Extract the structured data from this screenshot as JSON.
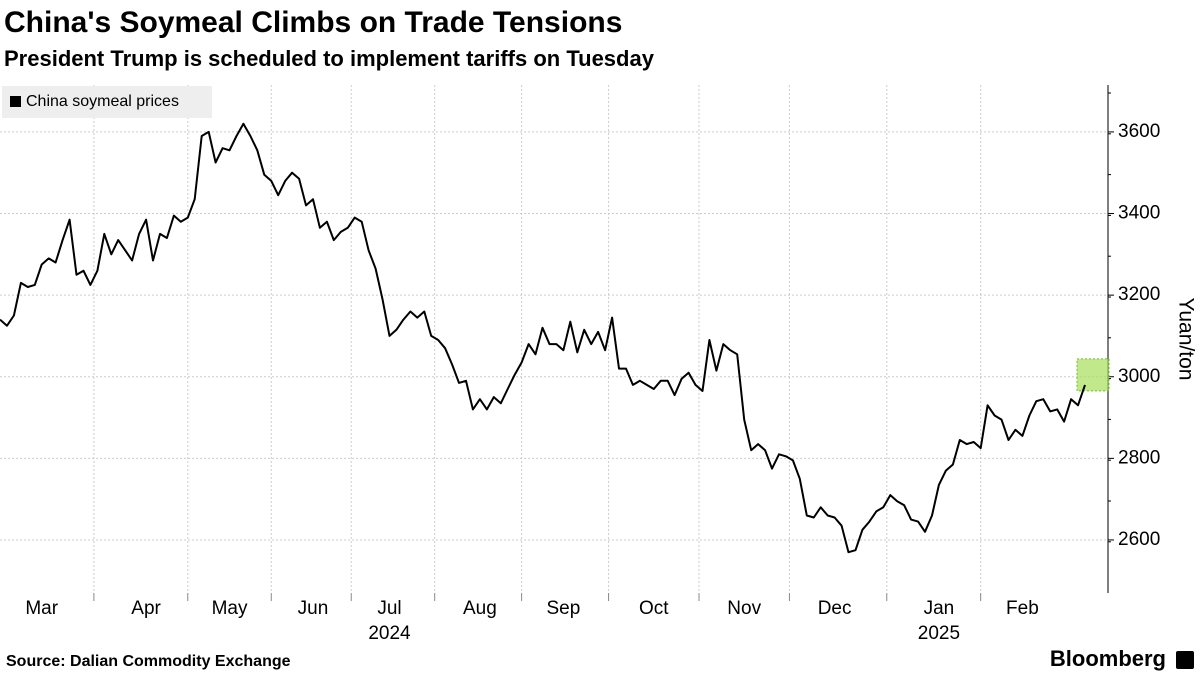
{
  "chart_data": {
    "type": "line",
    "title": "China's Soymeal Climbs on Trade Tensions",
    "subtitle": "President Trump is scheduled to implement tariffs on Tuesday",
    "y_axis_label": "Yuan/ton",
    "source": "Source: Dalian Commodity Exchange",
    "brand": "Bloomberg",
    "categories": [
      null,
      null,
      null,
      null,
      null,
      null,
      "Mar",
      null,
      null,
      null,
      null,
      null,
      null,
      null,
      null,
      null,
      null,
      null,
      null,
      null,
      null,
      "Apr",
      null,
      null,
      null,
      null,
      null,
      null,
      null,
      null,
      null,
      null,
      null,
      "May",
      null,
      null,
      null,
      null,
      null,
      null,
      null,
      null,
      null,
      null,
      null,
      "Jun",
      null,
      null,
      null,
      null,
      null,
      null,
      null,
      null,
      null,
      null,
      "Jul",
      null,
      null,
      null,
      null,
      null,
      null,
      null,
      null,
      null,
      null,
      null,
      null,
      "Aug",
      null,
      null,
      null,
      null,
      null,
      null,
      null,
      null,
      null,
      null,
      null,
      "Sep",
      null,
      null,
      null,
      null,
      null,
      null,
      null,
      null,
      null,
      null,
      null,
      null,
      "Oct",
      null,
      null,
      null,
      null,
      null,
      null,
      null,
      null,
      null,
      null,
      null,
      null,
      "Nov",
      null,
      null,
      null,
      null,
      null,
      null,
      null,
      null,
      null,
      null,
      null,
      null,
      "Dec",
      null,
      null,
      null,
      null,
      null,
      null,
      null,
      null,
      null,
      null,
      null,
      null,
      null,
      null,
      "Jan",
      null,
      null,
      null,
      null,
      null,
      null,
      null,
      null,
      null,
      null,
      null,
      "Feb",
      null,
      null,
      null,
      null,
      null,
      null,
      null,
      null,
      null
    ],
    "year_labels": [
      {
        "label": "2024",
        "at": "Jul"
      },
      {
        "label": "2025",
        "at": "Jan"
      }
    ],
    "series": [
      {
        "name": "China soymeal prices",
        "color": "#000000",
        "values": [
          3140,
          3125,
          3150,
          3230,
          3220,
          3225,
          3275,
          3290,
          3280,
          3335,
          3385,
          3250,
          3260,
          3225,
          3260,
          3350,
          3300,
          3335,
          3310,
          3285,
          3350,
          3385,
          3285,
          3350,
          3340,
          3395,
          3380,
          3390,
          3435,
          3590,
          3600,
          3525,
          3560,
          3555,
          3590,
          3620,
          3590,
          3555,
          3495,
          3480,
          3445,
          3480,
          3500,
          3485,
          3420,
          3435,
          3365,
          3380,
          3335,
          3355,
          3365,
          3390,
          3380,
          3310,
          3265,
          3190,
          3100,
          3115,
          3140,
          3160,
          3145,
          3160,
          3100,
          3090,
          3070,
          3030,
          2985,
          2990,
          2920,
          2945,
          2920,
          2950,
          2935,
          2970,
          3005,
          3035,
          3080,
          3055,
          3120,
          3080,
          3080,
          3065,
          3135,
          3060,
          3115,
          3080,
          3110,
          3065,
          3145,
          3020,
          3020,
          2980,
          2990,
          2980,
          2970,
          2990,
          2990,
          2955,
          2995,
          3010,
          2980,
          2965,
          3090,
          3015,
          3080,
          3065,
          3055,
          2895,
          2820,
          2835,
          2820,
          2775,
          2810,
          2805,
          2795,
          2750,
          2660,
          2655,
          2680,
          2660,
          2655,
          2635,
          2570,
          2575,
          2625,
          2645,
          2670,
          2680,
          2710,
          2695,
          2685,
          2650,
          2645,
          2620,
          2660,
          2735,
          2770,
          2785,
          2845,
          2835,
          2840,
          2825,
          2930,
          2905,
          2895,
          2845,
          2870,
          2855,
          2905,
          2940,
          2945,
          2915,
          2920,
          2890,
          2945,
          2930,
          2980
        ]
      }
    ],
    "ylim": [
      2470,
      3715
    ],
    "yticks": [
      2600,
      2800,
      3000,
      3200,
      3400,
      3600
    ],
    "grid": true,
    "highlight_last": true,
    "highlight_color": "#a6e05a",
    "legend": "top-left"
  }
}
